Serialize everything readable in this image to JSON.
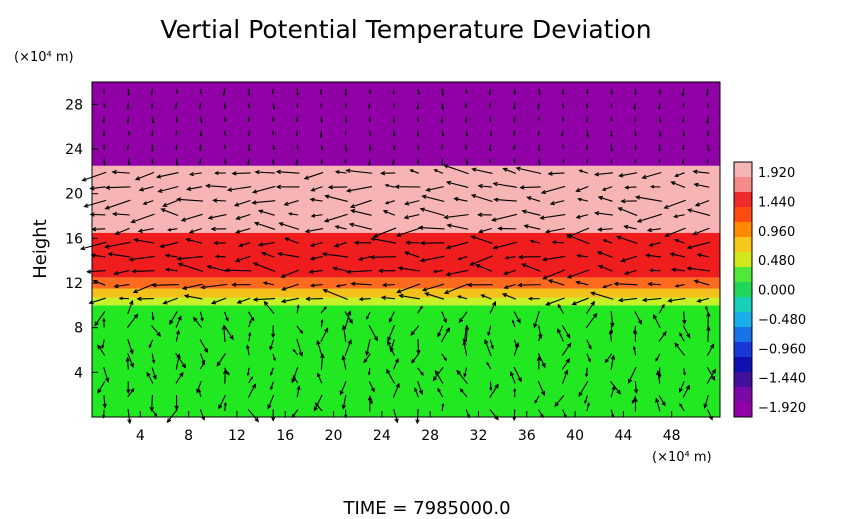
{
  "chart_data": {
    "type": "heatmap",
    "title": "Vertial Potential Temperature Deviation",
    "ylabel": "Height",
    "x_unit": "(×10⁴ m)",
    "y_unit": "(×10⁴ m)",
    "xlim": [
      0,
      52
    ],
    "ylim": [
      0,
      30
    ],
    "x_ticks": [
      "4",
      "8",
      "12",
      "16",
      "20",
      "24",
      "28",
      "32",
      "36",
      "40",
      "44",
      "48"
    ],
    "y_ticks": [
      "4",
      "8",
      "12",
      "16",
      "20",
      "24",
      "28"
    ],
    "overlay": "wind vector arrows",
    "layers": [
      {
        "y_from": 0,
        "y_to": 10,
        "value": 0.0,
        "color": "#21e821"
      },
      {
        "y_from": 10,
        "y_to": 10.7,
        "value": 0.6,
        "color": "#c6f028"
      },
      {
        "y_from": 10.7,
        "y_to": 11.5,
        "value": 1.0,
        "color": "#f3c01c"
      },
      {
        "y_from": 11.5,
        "y_to": 12.5,
        "value": 1.3,
        "color": "#ff6a1e"
      },
      {
        "y_from": 12.5,
        "y_to": 16.5,
        "value": 1.6,
        "color": "#ef1d1d"
      },
      {
        "y_from": 16.5,
        "y_to": 22.5,
        "value": 1.92,
        "color": "#f6b4b4"
      },
      {
        "y_from": 22.5,
        "y_to": 30,
        "value": -1.92,
        "color": "#9000a6"
      }
    ],
    "colorbar": {
      "labels": [
        "1.920",
        "1.440",
        "0.960",
        "0.480",
        "0.000",
        "−0.480",
        "−0.960",
        "−1.440",
        "−1.920"
      ],
      "colors": [
        "#f6b4b4",
        "#f48a8a",
        "#ee2a2a",
        "#ff4a10",
        "#ff8a00",
        "#f7c81a",
        "#d2e81a",
        "#4fe83b",
        "#20d65a",
        "#18d0b8",
        "#18aee8",
        "#1872e8",
        "#1838d8",
        "#1010b0",
        "#40109a",
        "#7a0aa8",
        "#9000a6"
      ]
    }
  },
  "footer": {
    "time_label": "TIME  =  7985000.0"
  }
}
